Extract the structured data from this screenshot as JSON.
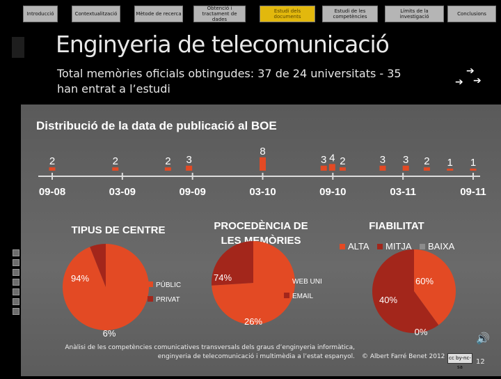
{
  "nav": {
    "tabs": [
      {
        "label": "Introducció",
        "active": false
      },
      {
        "label": "Contextualització",
        "active": false
      },
      {
        "label": "Mètode de recerca",
        "active": false
      },
      {
        "label": "Obtenció i tractament de dades",
        "active": false
      },
      {
        "label": "Estudi dels documents",
        "active": true
      },
      {
        "label": "Estudi de les competències",
        "active": false
      },
      {
        "label": "Límits de la investigació",
        "active": false
      },
      {
        "label": "Conclusions",
        "active": false
      }
    ]
  },
  "slide": {
    "title": "Enginyeria de telecomunicació",
    "subtitle": "Total memòries oficials obtingudes: 37 de 24 universitats - 35 han entrat a l’estudi"
  },
  "colors": {
    "accent": "#e34a24",
    "dark_red": "#a3261b",
    "gray": "#8c8c8c",
    "tab_active": "#e2b80d"
  },
  "chart_data": [
    {
      "type": "bar",
      "title": "Distribució de la data de publicació al BOE",
      "tick_labels": [
        "09-08",
        "03-09",
        "09-09",
        "03-10",
        "09-10",
        "03-11",
        "09-11"
      ],
      "x": [
        0.0,
        3.0,
        5.5,
        6.5,
        10.0,
        12.9,
        13.3,
        13.8,
        15.7,
        16.8,
        17.8,
        18.9,
        20.0
      ],
      "values": [
        2,
        2,
        2,
        3,
        8,
        3,
        4,
        2,
        3,
        3,
        2,
        1,
        1
      ],
      "xlabel": "",
      "ylabel": "",
      "grid": false
    },
    {
      "type": "pie",
      "title": "TIPUS DE CENTRE",
      "labels": [
        "PÚBLIC",
        "PRIVAT"
      ],
      "values": [
        94,
        6
      ],
      "value_labels": [
        "94%",
        "6%"
      ],
      "colors": [
        "#e34a24",
        "#a3261b"
      ]
    },
    {
      "type": "pie",
      "title": "PROCEDÈNCIA DE LES MEMÒRIES",
      "labels": [
        "WEB UNI",
        "EMAIL"
      ],
      "values": [
        74,
        26
      ],
      "value_labels": [
        "74%",
        "26%"
      ],
      "colors": [
        "#e34a24",
        "#a3261b"
      ]
    },
    {
      "type": "pie",
      "title": "FIABILITAT",
      "labels": [
        "ALTA",
        "MITJA",
        "BAIXA"
      ],
      "values": [
        40,
        60,
        0
      ],
      "value_labels": [
        "40%",
        "60%",
        "0%"
      ],
      "colors": [
        "#e34a24",
        "#a3261b",
        "#8c8c8c"
      ]
    }
  ],
  "footer": {
    "line1": "Anàlisi de les competències comunicatives transversals dels graus d’enginyeria informàtica,",
    "line2": "enginyeria de telecomunicació i multimèdia a l’estat espanyol.",
    "copyright": "© Albert Farré Benet 2012",
    "license": "cc by-nc-sa",
    "page": "12"
  }
}
